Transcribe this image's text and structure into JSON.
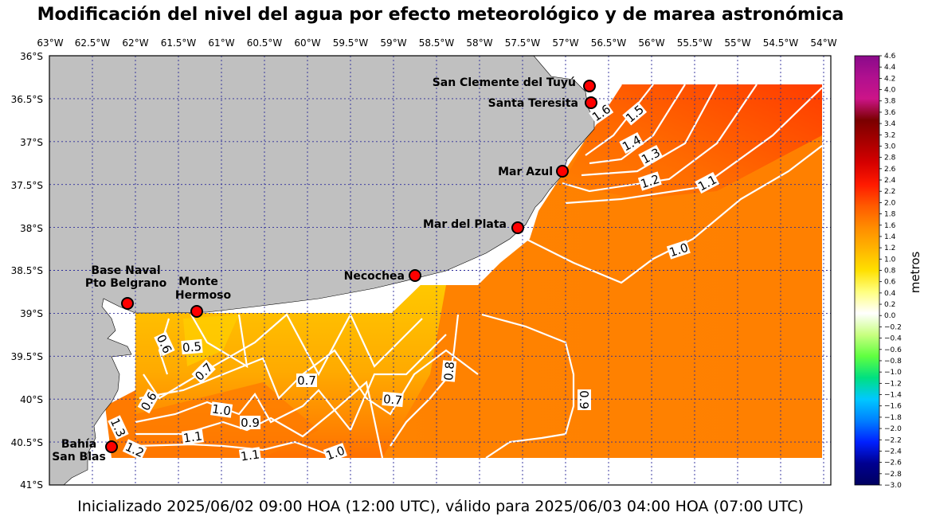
{
  "title": "Modificación del nivel del agua por efecto meteorológico y de marea astronómica",
  "footer": "Inicializado 2025/06/02 09:00 HOA (12:00 UTC), válido para 2025/06/03 04:00 HOA (07:00 UTC)",
  "map": {
    "lon_labels": [
      "63°W",
      "62.5°W",
      "62°W",
      "61.5°W",
      "61°W",
      "60.5°W",
      "60°W",
      "59.5°W",
      "59°W",
      "58.5°W",
      "58°W",
      "57.5°W",
      "57°W",
      "56.5°W",
      "56°W",
      "55.5°W",
      "55°W",
      "54.5°W",
      "54°W"
    ],
    "lat_labels": [
      "36°S",
      "36.5°S",
      "37°S",
      "37.5°S",
      "38°S",
      "38.5°S",
      "39°S",
      "39.5°S",
      "40°S",
      "40.5°S",
      "41°S"
    ],
    "land_color": "#c0c0c0",
    "grid_color": "#2b2b9a",
    "stations": [
      {
        "name_lines": [
          "San Clemente del Tuyú"
        ]
      },
      {
        "name_lines": [
          "Santa Teresita"
        ]
      },
      {
        "name_lines": [
          "Mar Azul"
        ]
      },
      {
        "name_lines": [
          "Mar del Plata"
        ]
      },
      {
        "name_lines": [
          "Necochea"
        ]
      },
      {
        "name_lines": [
          "Base Naval",
          "Pto Belgrano"
        ]
      },
      {
        "name_lines": [
          "Monte",
          "Hermoso"
        ]
      },
      {
        "name_lines": [
          "Bahía",
          "San Blas"
        ]
      }
    ],
    "contour_labels": [
      "1.6",
      "1.5",
      "1.4",
      "1.3",
      "1.2",
      "1.1",
      "1.0",
      "0.6",
      "0.5",
      "0.7",
      "0.6",
      "0.7",
      "1.0",
      "0.9",
      "1.1",
      "1.3",
      "1.2",
      "1.1",
      "1.0",
      "0.7",
      "0.8",
      "0.9"
    ]
  },
  "colorbar": {
    "unit_label": "metros",
    "ticks": [
      "4.6",
      "4.4",
      "4.2",
      "4.0",
      "3.8",
      "3.6",
      "3.4",
      "3.2",
      "3.0",
      "2.8",
      "2.6",
      "2.4",
      "2.2",
      "2.0",
      "1.8",
      "1.6",
      "1.4",
      "1.2",
      "1.0",
      "0.8",
      "0.6",
      "0.4",
      "0.2",
      "0.0",
      "−0.2",
      "−0.4",
      "−0.6",
      "−0.8",
      "−1.0",
      "−1.2",
      "−1.4",
      "−1.6",
      "−1.8",
      "−2.0",
      "−2.2",
      "−2.4",
      "−2.6",
      "−2.8",
      "−3.0"
    ],
    "gradient": [
      "#8a0a8a",
      "#b0108f",
      "#cc1488",
      "#7a0000",
      "#a80000",
      "#d60000",
      "#ff1a00",
      "#ff5a00",
      "#ff8c00",
      "#ffb400",
      "#ffe000",
      "#ffff80",
      "#ffffff",
      "#c8ff80",
      "#60ff40",
      "#00e080",
      "#00c8ff",
      "#0080ff",
      "#0020ff",
      "#000090",
      "#000060"
    ]
  }
}
